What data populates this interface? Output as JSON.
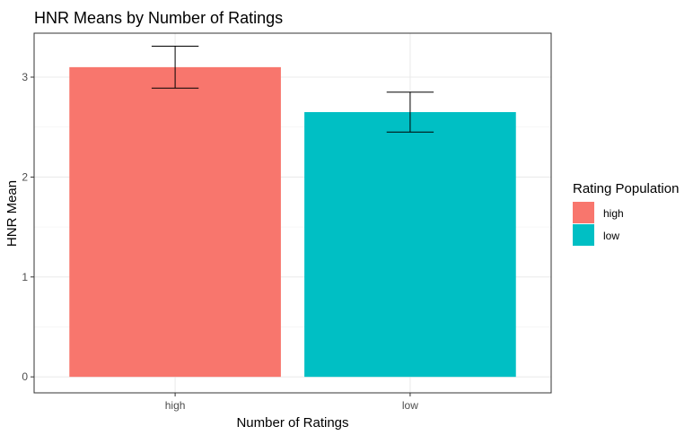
{
  "chart_data": {
    "type": "bar",
    "title": "HNR Means by Number of Ratings",
    "xlabel": "Number of Ratings",
    "ylabel": "HNR Mean",
    "categories": [
      "high",
      "low"
    ],
    "values": [
      3.1,
      2.65
    ],
    "error_upper": [
      3.31,
      2.85
    ],
    "error_lower": [
      2.89,
      2.45
    ],
    "yticks": [
      "0",
      "1",
      "2",
      "3"
    ],
    "ylim": [
      -0.16,
      3.44
    ],
    "grid": true,
    "legend": {
      "title": "Rating Population",
      "position": "right",
      "entries": [
        {
          "label": "high",
          "color": "#F8766D"
        },
        {
          "label": "low",
          "color": "#00BFC4"
        }
      ]
    },
    "colors": [
      "#F8766D",
      "#00BFC4"
    ]
  }
}
